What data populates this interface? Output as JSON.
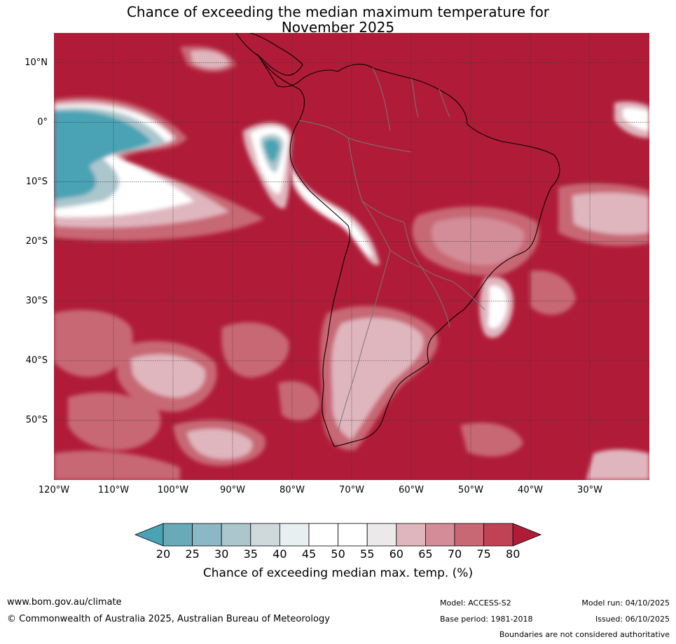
{
  "title": {
    "line1": "Chance of exceeding the median maximum temperature for",
    "line2": "November 2025"
  },
  "map": {
    "latitude_labels": [
      {
        "id": "lat-10n",
        "label": "10°N",
        "lat": 10
      },
      {
        "id": "lat-0",
        "label": "0°",
        "lat": 0
      },
      {
        "id": "lat-10s",
        "label": "10°S",
        "lat": -10
      },
      {
        "id": "lat-20s",
        "label": "20°S",
        "lat": -20
      },
      {
        "id": "lat-30s",
        "label": "30°S",
        "lat": -30
      },
      {
        "id": "lat-40s",
        "label": "40°S",
        "lat": -40
      },
      {
        "id": "lat-50s",
        "label": "50°S",
        "lat": -50
      }
    ],
    "longitude_labels": [
      {
        "id": "lon-120w",
        "label": "120°W",
        "lon": -120
      },
      {
        "id": "lon-110w",
        "label": "110°W",
        "lon": -110
      },
      {
        "id": "lon-100w",
        "label": "100°W",
        "lon": -100
      },
      {
        "id": "lon-90w",
        "label": "90°W",
        "lon": -90
      },
      {
        "id": "lon-80w",
        "label": "80°W",
        "lon": -80
      },
      {
        "id": "lon-70w",
        "label": "70°W",
        "lon": -70
      },
      {
        "id": "lon-60w",
        "label": "60°W",
        "lon": -60
      },
      {
        "id": "lon-50w",
        "label": "50°W",
        "lon": -50
      },
      {
        "id": "lon-40w",
        "label": "40°W",
        "lon": -40
      },
      {
        "id": "lon-30w",
        "label": "30°W",
        "lon": -30
      }
    ],
    "lon_range": [
      -120,
      -20
    ],
    "lat_range": [
      -60,
      15
    ],
    "background_color": "#b01c38"
  },
  "colorbar": {
    "label": "Chance of exceeding median max. temp. (%)",
    "ticks": [
      "20",
      "25",
      "30",
      "35",
      "40",
      "45",
      "50",
      "55",
      "60",
      "65",
      "70",
      "75",
      "80"
    ],
    "under_color": "#4aa3b4",
    "over_color": "#b01c38",
    "colors": [
      "#69aab8",
      "#8bb8c4",
      "#abc6cd",
      "#cfd8db",
      "#e8eff1",
      "#ffffff",
      "#ffffff",
      "#ebe9ea",
      "#e0b6be",
      "#d38d98",
      "#c86874",
      "#c04355"
    ]
  },
  "footer": {
    "url": "www.bom.gov.au/climate",
    "copyright": "© Commonwealth of Australia 2025, Australian Bureau of Meteorology",
    "model": "Model: ACCESS-S2",
    "base_period": "Base period: 1981-2018",
    "model_run": "Model run: 04/10/2025",
    "issued": "Issued: 06/10/2025",
    "boundary_note": "Boundaries are not considered authoritative"
  }
}
